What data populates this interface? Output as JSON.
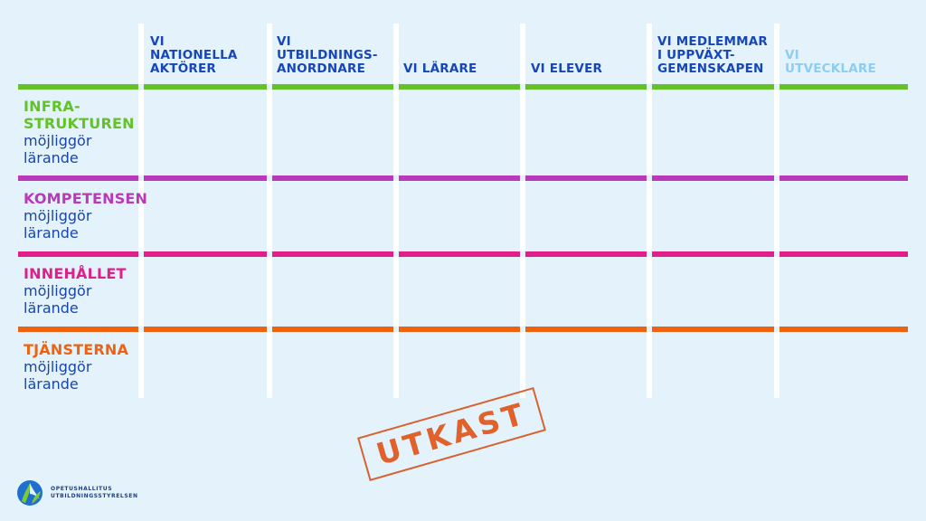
{
  "columns": [
    {
      "label": "VI\nNATIONELLA\nAKTÖRER",
      "color": "#1746b8"
    },
    {
      "label": "VI\nUTBILDNINGS-\nANORDNARE",
      "color": "#1746b8"
    },
    {
      "label": "VI LÄRARE",
      "color": "#1746b8"
    },
    {
      "label": "VI ELEVER",
      "color": "#1746b8"
    },
    {
      "label": "VI MEDLEMMAR\nI UPPVÄXT-\nGEMENSKAPEN",
      "color": "#1746b8"
    },
    {
      "label": "VI\nUTVECKLARE",
      "color": "#8ccdf0"
    }
  ],
  "rows": [
    {
      "title": "INFRA-\nSTRUKTUREN",
      "subtitle": "möjliggör\nlärande",
      "color": "#64c229"
    },
    {
      "title": "KOMPETENSEN",
      "subtitle": "möjliggör\nlärande",
      "color": "#b93ab8"
    },
    {
      "title": "INNEHÅLLET",
      "subtitle": "möjliggör\nlärande",
      "color": "#e01f8a"
    },
    {
      "title": "TJÄNSTERNA",
      "subtitle": "möjliggör\nlärande",
      "color": "#f0620f"
    }
  ],
  "stamp": {
    "text": "UTKAST",
    "color": "#e0612c"
  },
  "logo": {
    "text": "OPETUSHALLITUS\nUTBILDNINGSSTYRELSEN"
  }
}
